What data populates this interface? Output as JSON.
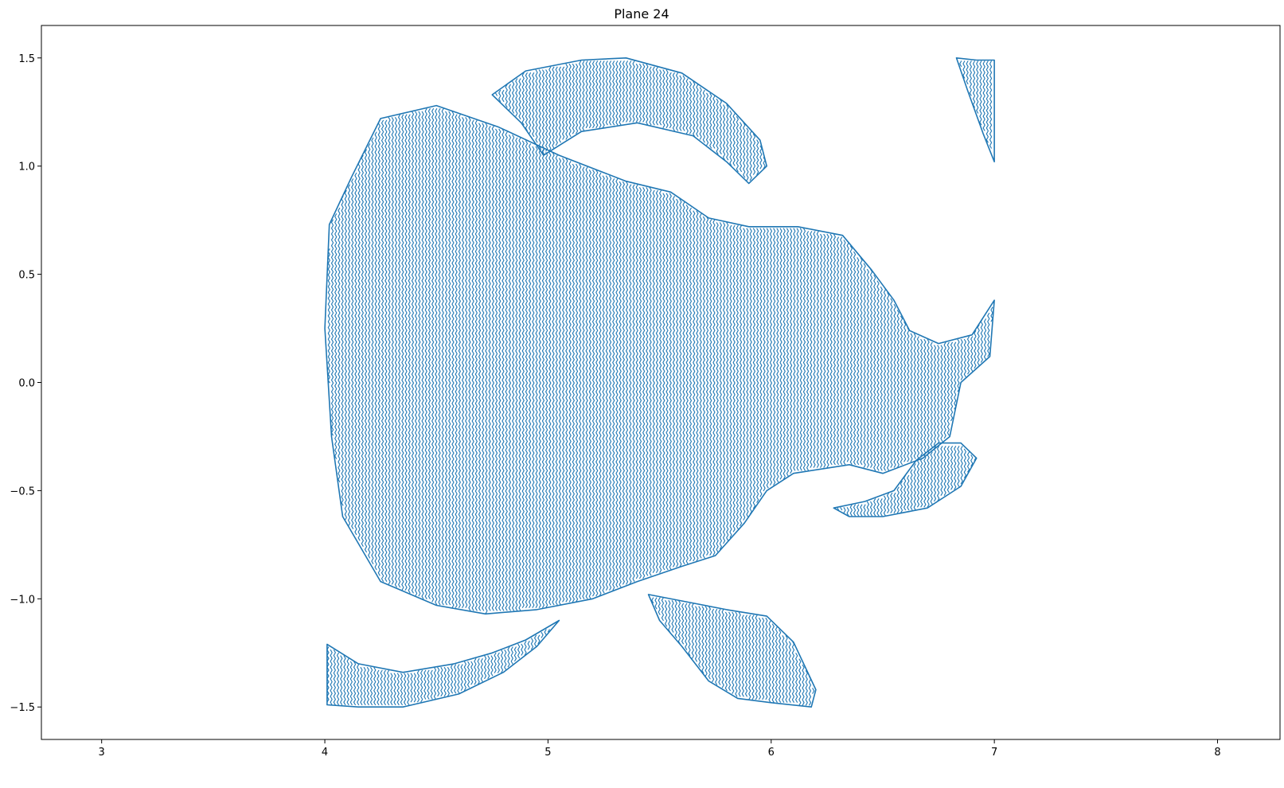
{
  "chart_data": {
    "type": "line",
    "title": "Plane 24",
    "xlabel": "",
    "ylabel": "",
    "xlim": [
      2.73,
      8.28
    ],
    "ylim": [
      -1.65,
      1.65
    ],
    "xticks": [
      3,
      4,
      5,
      6,
      7,
      8
    ],
    "yticks": [
      -1.5,
      -1.0,
      -0.5,
      0.0,
      0.5,
      1.0,
      1.5
    ],
    "ytick_labels": [
      "−1.5",
      "−1.0",
      "−0.5",
      "0.0",
      "0.5",
      "1.0",
      "1.5"
    ],
    "grid": false,
    "legend": "none",
    "series_color": "#1f77b4",
    "regions": [
      {
        "outline": [
          [
            4.02,
            0.73
          ],
          [
            4.12,
            0.95
          ],
          [
            4.25,
            1.22
          ],
          [
            4.5,
            1.28
          ],
          [
            4.78,
            1.18
          ],
          [
            5.05,
            1.05
          ],
          [
            5.35,
            0.93
          ],
          [
            5.55,
            0.88
          ],
          [
            5.72,
            0.76
          ],
          [
            5.9,
            0.72
          ],
          [
            6.12,
            0.72
          ],
          [
            6.32,
            0.68
          ],
          [
            6.45,
            0.52
          ],
          [
            6.55,
            0.38
          ],
          [
            6.62,
            0.24
          ],
          [
            6.75,
            0.18
          ],
          [
            6.9,
            0.22
          ],
          [
            7.0,
            0.38
          ],
          [
            6.98,
            0.12
          ],
          [
            6.85,
            0.0
          ],
          [
            6.8,
            -0.25
          ],
          [
            6.68,
            -0.35
          ],
          [
            6.5,
            -0.42
          ],
          [
            6.35,
            -0.38
          ],
          [
            6.1,
            -0.42
          ],
          [
            5.98,
            -0.5
          ],
          [
            5.88,
            -0.65
          ],
          [
            5.75,
            -0.8
          ],
          [
            5.6,
            -0.85
          ],
          [
            5.4,
            -0.92
          ],
          [
            5.2,
            -1.0
          ],
          [
            4.95,
            -1.05
          ],
          [
            4.72,
            -1.07
          ],
          [
            4.5,
            -1.03
          ],
          [
            4.25,
            -0.92
          ],
          [
            4.08,
            -0.62
          ],
          [
            4.03,
            -0.25
          ],
          [
            4.0,
            0.25
          ]
        ]
      },
      {
        "outline": [
          [
            4.75,
            1.33
          ],
          [
            4.9,
            1.44
          ],
          [
            5.15,
            1.49
          ],
          [
            5.35,
            1.5
          ],
          [
            5.6,
            1.43
          ],
          [
            5.8,
            1.29
          ],
          [
            5.95,
            1.12
          ],
          [
            5.98,
            1.0
          ],
          [
            5.9,
            0.92
          ],
          [
            5.8,
            1.02
          ],
          [
            5.65,
            1.14
          ],
          [
            5.4,
            1.2
          ],
          [
            5.15,
            1.16
          ],
          [
            4.98,
            1.05
          ],
          [
            4.88,
            1.2
          ]
        ]
      },
      {
        "outline": [
          [
            4.01,
            -1.21
          ],
          [
            4.15,
            -1.3
          ],
          [
            4.35,
            -1.34
          ],
          [
            4.58,
            -1.3
          ],
          [
            4.75,
            -1.25
          ],
          [
            4.9,
            -1.19
          ],
          [
            5.05,
            -1.1
          ],
          [
            4.95,
            -1.22
          ],
          [
            4.8,
            -1.34
          ],
          [
            4.6,
            -1.44
          ],
          [
            4.35,
            -1.5
          ],
          [
            4.15,
            -1.5
          ],
          [
            4.01,
            -1.49
          ]
        ]
      },
      {
        "outline": [
          [
            5.45,
            -0.98
          ],
          [
            5.6,
            -1.01
          ],
          [
            5.8,
            -1.05
          ],
          [
            5.98,
            -1.08
          ],
          [
            6.1,
            -1.2
          ],
          [
            6.2,
            -1.42
          ],
          [
            6.18,
            -1.5
          ],
          [
            6.0,
            -1.48
          ],
          [
            5.85,
            -1.46
          ],
          [
            5.72,
            -1.38
          ],
          [
            5.6,
            -1.22
          ],
          [
            5.5,
            -1.1
          ]
        ]
      },
      {
        "outline": [
          [
            6.28,
            -0.58
          ],
          [
            6.42,
            -0.55
          ],
          [
            6.55,
            -0.5
          ],
          [
            6.65,
            -0.36
          ],
          [
            6.75,
            -0.28
          ],
          [
            6.85,
            -0.28
          ],
          [
            6.92,
            -0.35
          ],
          [
            6.85,
            -0.48
          ],
          [
            6.7,
            -0.58
          ],
          [
            6.5,
            -0.62
          ],
          [
            6.35,
            -0.62
          ]
        ]
      },
      {
        "outline": [
          [
            6.83,
            1.5
          ],
          [
            6.92,
            1.49
          ],
          [
            7.0,
            1.49
          ],
          [
            7.0,
            1.2
          ],
          [
            7.0,
            1.02
          ],
          [
            6.95,
            1.15
          ],
          [
            6.88,
            1.35
          ]
        ]
      }
    ]
  }
}
